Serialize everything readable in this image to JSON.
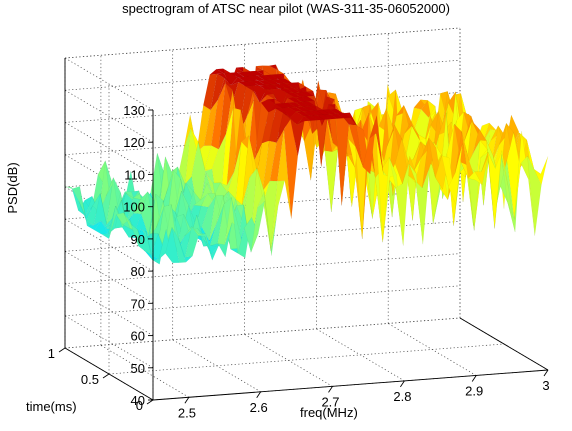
{
  "chart_data": {
    "type": "surface",
    "title": "spectrogram of ATSC near pilot (WAS-311-35-06052000)",
    "xlabel": "freq(MHz)",
    "ylabel": "time(ms)",
    "zlabel": "PSD(dB)",
    "xlim": [
      2.45,
      3.0
    ],
    "ylim": [
      0,
      1
    ],
    "zlim": [
      40,
      130
    ],
    "x_ticks": [
      "2.5",
      "2.6",
      "2.7",
      "2.8",
      "2.9",
      "3"
    ],
    "y_ticks": [
      "0",
      "0.5",
      "1"
    ],
    "z_ticks": [
      "40",
      "50",
      "60",
      "70",
      "80",
      "90",
      "100",
      "110",
      "120",
      "130"
    ],
    "grid": true,
    "colormap": "jet",
    "pilot_frequency_mhz": 2.69,
    "pilot_peak_db": 123
  }
}
